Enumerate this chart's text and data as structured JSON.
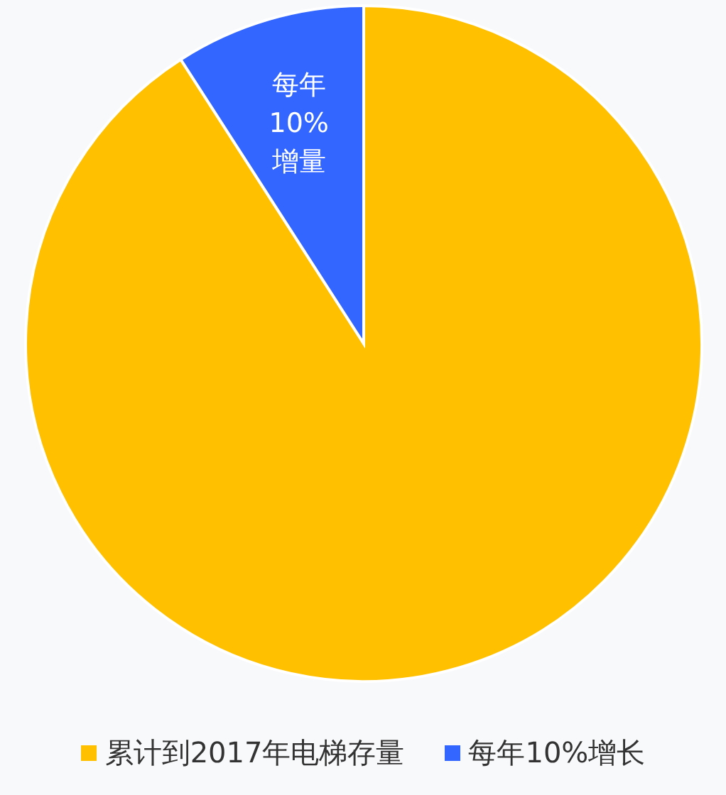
{
  "chart_data": {
    "type": "pie",
    "categories": [
      "累计到2017年电梯存量",
      "每年10%增长"
    ],
    "values": [
      90.9,
      9.1
    ],
    "colors": [
      "#ffc000",
      "#3366ff"
    ],
    "annotations": [
      "每年10%增量"
    ],
    "legend": "bottom"
  }
}
